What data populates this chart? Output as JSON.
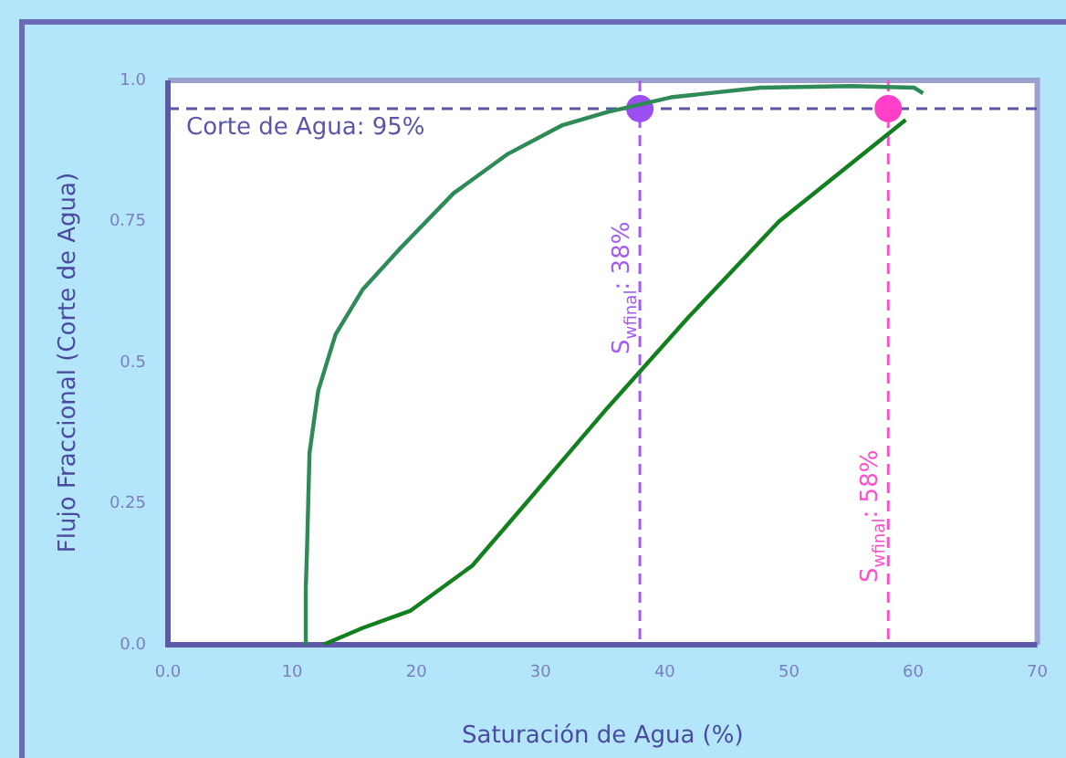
{
  "chart_data": {
    "type": "line",
    "xlabel": "Saturación de Agua (%)",
    "ylabel": "Flujo Fraccional (Corte de Agua)",
    "xlim": [
      0,
      70
    ],
    "xticks": [
      {
        "value": 0,
        "label": "0.0"
      },
      10,
      20,
      30,
      40,
      50,
      60,
      70
    ],
    "ylim": [
      0,
      1
    ],
    "yticks": [
      {
        "value": 0,
        "label": "0.0"
      },
      0.25,
      0.5,
      0.75,
      {
        "value": 1,
        "label": "1.0"
      }
    ],
    "grid": false,
    "legend": false,
    "marker": "none",
    "line_style": "solid",
    "series": [
      {
        "color": "#2e8b57",
        "x": [
          11.1,
          11.1,
          11.2,
          11.4,
          12.1,
          13.5,
          15.7,
          18.6,
          23,
          27.4,
          31.7,
          35.4,
          40.5,
          47.7,
          55,
          60.1,
          60.8
        ],
        "values": [
          0,
          0.1,
          0.17,
          0.34,
          0.45,
          0.55,
          0.63,
          0.7,
          0.8,
          0.87,
          0.92,
          0.944,
          0.97,
          0.987,
          0.99,
          0.987,
          0.977
        ]
      },
      {
        "color": "#12801e",
        "x": [
          12.5,
          15.7,
          19.5,
          24.5,
          28.8,
          35.4,
          41.9,
          49.2,
          59.4
        ],
        "values": [
          0,
          0.03,
          0.06,
          0.14,
          0.25,
          0.42,
          0.58,
          0.75,
          0.93
        ]
      },
      {
        "type": "scatter",
        "marker": "circle",
        "x": [
          38,
          58
        ],
        "values": [
          0.95,
          0.95
        ],
        "colors": [
          "#9b4ff0",
          "#ff3fc8"
        ]
      }
    ],
    "ref_lines": [
      {
        "axis": "y",
        "value": 0.95,
        "label": "Corte de Agua: 95%",
        "color": "#5a55a8",
        "line_style": "dashed"
      },
      {
        "axis": "x",
        "value": 38,
        "label": "S$_{wfinal}$: 38%",
        "color": "#a45cf0",
        "line_style": "dashed"
      },
      {
        "axis": "x",
        "value": 58,
        "label": "S$_{wfinal}$: 58%",
        "color": "#ff4fcf",
        "line_style": "dashed"
      }
    ]
  }
}
